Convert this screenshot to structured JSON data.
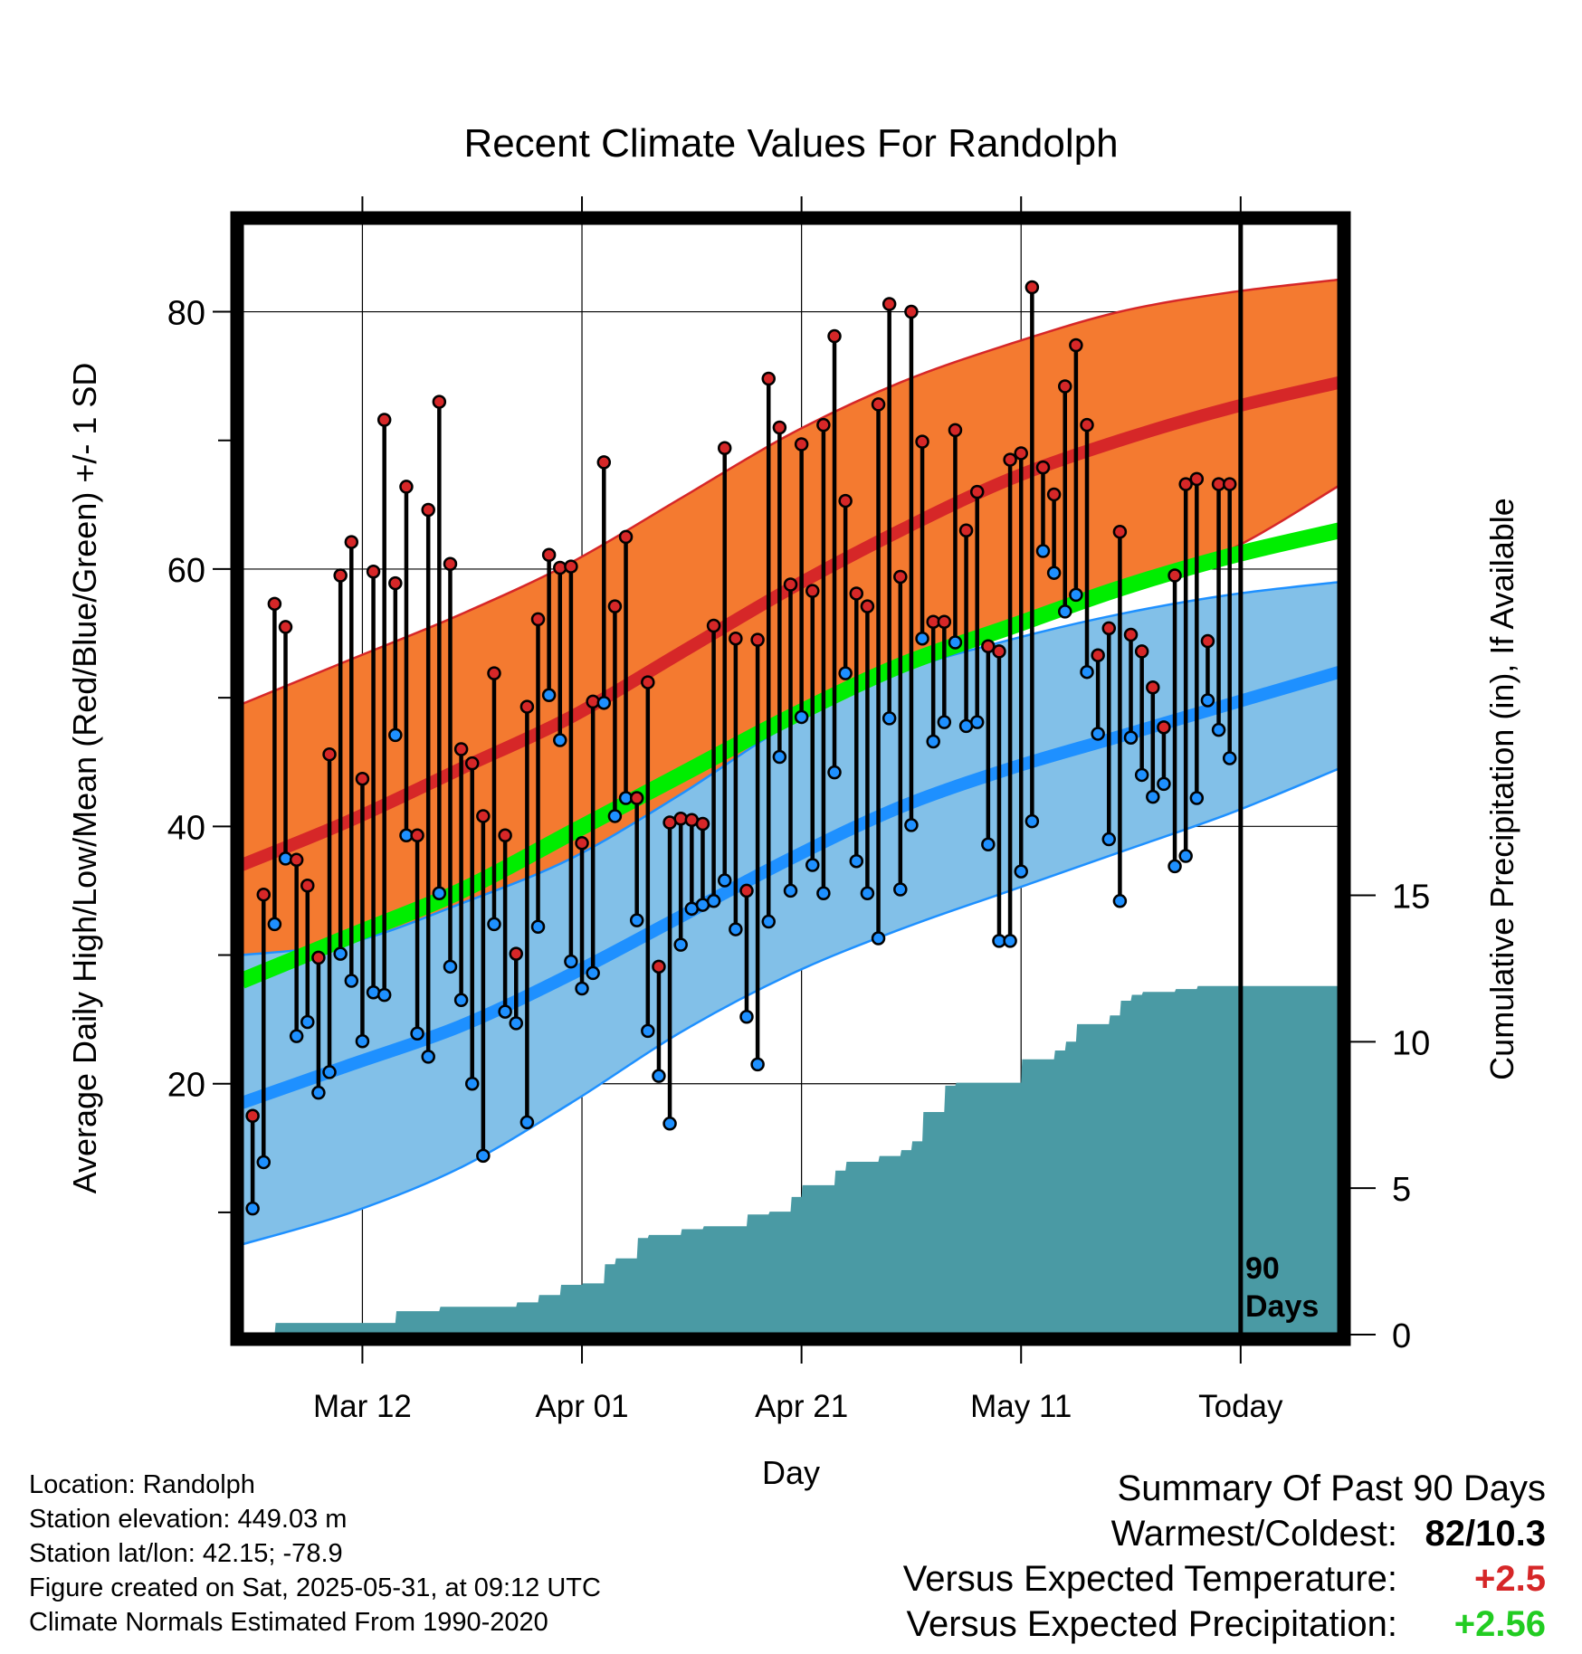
{
  "title": "Recent Climate Values For Randolph",
  "xlabel": "Day",
  "ylabel_left": "Average Daily High/Low/Mean (Red/Blue/Green) +/- 1 SD",
  "ylabel_right": "Cumulative Precipitation (in), If Available",
  "today_marker_label": [
    "90",
    "Days"
  ],
  "info": {
    "location": "Location: Randolph",
    "elevation": "Station elevation: 449.03 m",
    "latlon": "Station lat/lon: 42.15; -78.9",
    "created": "Figure created on Sat, 2025-05-31, at 09:12 UTC",
    "normals": "Climate Normals Estimated From 1990-2020"
  },
  "summary": {
    "heading": "Summary Of Past 90 Days",
    "warmest_coldest_label": "Warmest/Coldest:",
    "warmest_coldest_value": "82/10.3",
    "temp_label": "Versus Expected Temperature:",
    "temp_value": "+2.5",
    "precip_label": "Versus Expected Precipitation:",
    "precip_value": "+2.56"
  },
  "colors": {
    "high_band": "#f47a30",
    "high_line": "#d62728",
    "low_band": "#82c0e8",
    "low_line": "#1e90ff",
    "mean_line": "#00ee00",
    "precip_fill": "#4a9aa4",
    "high_marker": "#d62728",
    "low_marker": "#1e90ff"
  },
  "chart_data": {
    "type": "line",
    "x_tick_labels": [
      "Mar 12",
      "Apr 01",
      "Apr 21",
      "May 11",
      "Today"
    ],
    "x_tick_days": [
      10,
      30,
      50,
      70,
      90
    ],
    "xlim": [
      -1,
      99
    ],
    "y_left_ticks": [
      20,
      40,
      60,
      80
    ],
    "y_left_minor_ticks": [
      10,
      30,
      50,
      70
    ],
    "ylim_left": [
      0.5,
      87
    ],
    "y_right_ticks": [
      0,
      5,
      10,
      15
    ],
    "ylim_right": [
      0,
      38
    ],
    "grid": true,
    "normals": {
      "day": [
        -1,
        9,
        19,
        29,
        39,
        49,
        59,
        69,
        79,
        89,
        99
      ],
      "high_mean": [
        37,
        40.5,
        44.5,
        48.5,
        53.5,
        58.5,
        63,
        67,
        70,
        72.5,
        74.5
      ],
      "high_sd_upper": [
        49.5,
        53,
        56.5,
        60.5,
        65.5,
        70.5,
        74.5,
        77.5,
        80,
        81.5,
        82.5
      ],
      "high_sd_lower": [
        25.5,
        28.5,
        32.5,
        37,
        42,
        47,
        51.5,
        55.5,
        58.5,
        61.5,
        66.5
      ],
      "mean": [
        28,
        31.5,
        35,
        39.5,
        44,
        48.5,
        52.5,
        55.5,
        58.5,
        61,
        63
      ],
      "low_mean": [
        18.5,
        21.5,
        24.5,
        28.5,
        33,
        37.5,
        41.5,
        44.5,
        47,
        49.5,
        52
      ],
      "low_sd_upper": [
        30,
        31,
        34,
        37.5,
        42.5,
        48,
        52,
        54.5,
        56.5,
        58,
        59
      ],
      "low_sd_lower": [
        7.5,
        10,
        13.5,
        18.5,
        24,
        28.5,
        32,
        35,
        38,
        41,
        44.5
      ]
    },
    "daily_high": [
      17.5,
      34.7,
      57.3,
      55.5,
      37.4,
      35.4,
      29.8,
      45.6,
      59.5,
      62.1,
      43.7,
      59.8,
      71.6,
      58.9,
      66.4,
      39.3,
      64.6,
      73.0,
      60.4,
      46.0,
      44.9,
      40.8,
      51.9,
      39.3,
      30.1,
      49.3,
      56.1,
      61.1,
      60.1,
      60.2,
      38.7,
      49.7,
      68.3,
      57.1,
      62.5,
      42.2,
      51.2,
      29.1,
      40.3,
      40.6,
      40.5,
      40.2,
      55.6,
      69.4,
      54.6,
      35.0,
      54.5,
      74.8,
      71.0,
      58.8,
      69.7,
      58.3,
      71.2,
      78.1,
      65.3,
      58.1,
      57.1,
      72.8,
      80.6,
      59.4,
      80.0,
      69.9,
      55.9,
      55.9,
      70.8,
      63.0,
      66.0,
      54.0,
      53.6,
      68.5,
      69.0,
      81.9,
      67.9,
      65.8,
      74.2,
      77.4,
      71.2,
      53.3,
      55.4,
      62.9,
      54.9,
      53.6,
      50.8,
      47.7,
      59.5,
      66.6,
      67.0,
      54.4,
      66.6,
      66.6
    ],
    "daily_low": [
      10.3,
      13.9,
      32.4,
      37.5,
      23.7,
      24.8,
      19.3,
      20.9,
      30.1,
      28.0,
      23.3,
      27.1,
      26.9,
      47.1,
      39.3,
      23.9,
      22.1,
      34.8,
      29.1,
      26.5,
      20.0,
      14.4,
      32.4,
      25.6,
      24.7,
      17.0,
      32.2,
      50.2,
      46.7,
      29.5,
      27.4,
      28.6,
      49.6,
      40.8,
      42.2,
      32.7,
      24.1,
      20.6,
      16.9,
      30.8,
      33.6,
      33.9,
      34.2,
      35.8,
      32.0,
      25.2,
      21.5,
      32.6,
      45.4,
      35.0,
      48.5,
      37.0,
      34.8,
      44.2,
      51.9,
      37.3,
      34.8,
      31.3,
      48.4,
      35.1,
      40.1,
      54.6,
      46.6,
      48.1,
      54.3,
      47.8,
      48.1,
      38.6,
      31.1,
      31.1,
      36.5,
      40.4,
      61.4,
      59.7,
      56.7,
      58.0,
      52.0,
      47.2,
      39.0,
      34.2,
      46.9,
      44.0,
      42.3,
      43.3,
      36.9,
      37.7,
      42.2,
      49.8,
      47.5,
      45.3
    ],
    "cumulative_precip": {
      "day": [
        -1,
        2,
        2.1,
        13,
        13.1,
        17,
        17.1,
        24,
        24.1,
        26,
        26.1,
        28,
        28.1,
        30,
        30.1,
        32,
        32.1,
        33,
        33.1,
        35,
        35.1,
        36,
        36.1,
        39,
        39.1,
        41,
        41.1,
        45,
        45.1,
        47,
        47.1,
        49,
        49.1,
        50,
        50.1,
        53,
        53.1,
        54,
        54.1,
        57,
        57.1,
        59,
        59.1,
        60,
        60.1,
        61,
        61.1,
        63,
        63.1,
        64,
        64.1,
        70,
        70.1,
        73,
        73.1,
        74,
        74.1,
        75,
        75.1,
        78,
        78.1,
        79,
        79.1,
        80,
        80.1,
        81,
        81.1,
        84,
        84.1,
        86,
        86.1,
        99
      ],
      "value": [
        0,
        0,
        0.4,
        0.4,
        0.8,
        0.8,
        0.95,
        0.95,
        1.1,
        1.1,
        1.35,
        1.35,
        1.7,
        1.7,
        1.75,
        1.75,
        2.4,
        2.4,
        2.6,
        2.6,
        3.3,
        3.3,
        3.4,
        3.4,
        3.6,
        3.6,
        3.7,
        3.7,
        4.1,
        4.1,
        4.2,
        4.2,
        4.7,
        4.7,
        5.1,
        5.1,
        5.6,
        5.6,
        5.9,
        5.9,
        6.1,
        6.1,
        6.3,
        6.3,
        6.6,
        6.6,
        7.6,
        7.6,
        8.5,
        8.5,
        8.6,
        8.6,
        9.4,
        9.4,
        9.7,
        9.7,
        10.0,
        10.0,
        10.6,
        10.6,
        10.9,
        10.9,
        11.4,
        11.4,
        11.6,
        11.6,
        11.7,
        11.7,
        11.8,
        11.8,
        11.9,
        11.9
      ]
    }
  }
}
